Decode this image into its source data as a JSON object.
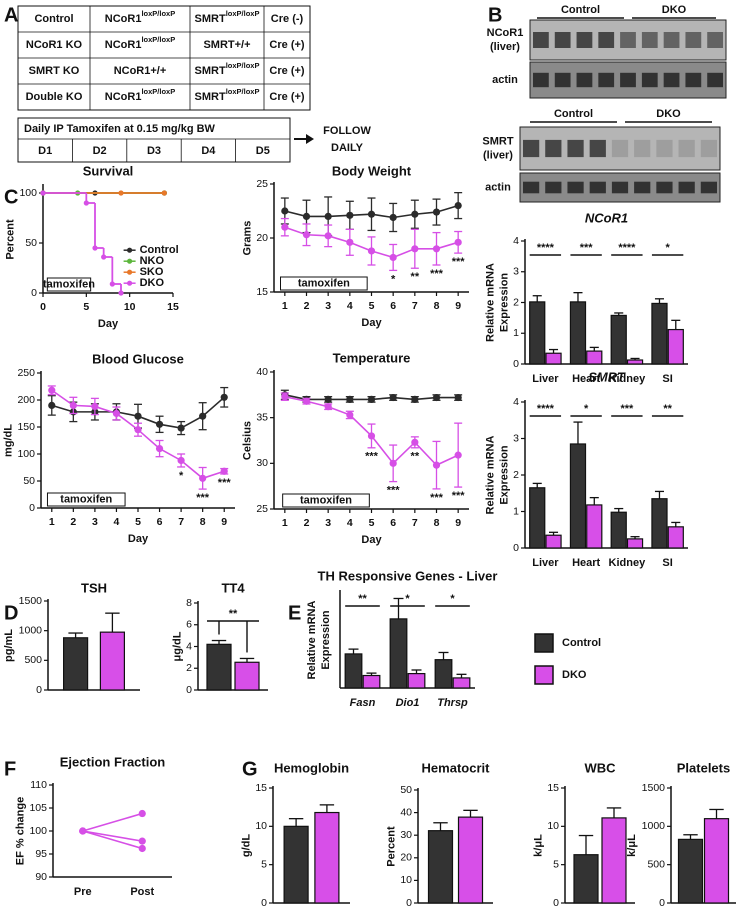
{
  "panel_labels": [
    "A",
    "B",
    "C",
    "D",
    "E",
    "F",
    "G"
  ],
  "genotype_table": {
    "rows": [
      [
        "Control",
        {
          "base": "NCoR1",
          "sup": "loxP/loxP"
        },
        {
          "base": "SMRT",
          "sup": "loxP/loxP"
        },
        "Cre (-)"
      ],
      [
        "NCoR1 KO",
        {
          "base": "NCoR1",
          "sup": "loxP/loxP"
        },
        "SMRT+/+",
        "Cre (+)"
      ],
      [
        "SMRT KO",
        "NCoR1+/+",
        {
          "base": "SMRT",
          "sup": "loxP/loxP"
        },
        "Cre (+)"
      ],
      [
        "Double KO",
        {
          "base": "NCoR1",
          "sup": "loxP/loxP"
        },
        {
          "base": "SMRT",
          "sup": "loxP/loxP"
        },
        "Cre (+)"
      ]
    ]
  },
  "tamoxifen_schedule": {
    "title": "Daily IP Tamoxifen at 0.15 mg/kg BW",
    "days": [
      "D1",
      "D2",
      "D3",
      "D4",
      "D5"
    ],
    "follow": [
      "FOLLOW",
      "DAILY"
    ]
  },
  "blots": [
    {
      "groups": [
        "Control",
        "DKO"
      ],
      "rows": [
        [
          "NCoR1",
          "(liver)"
        ],
        [
          "actin"
        ]
      ]
    },
    {
      "groups": [
        "Control",
        "DKO"
      ],
      "rows": [
        [
          "SMRT",
          "(liver)"
        ],
        [
          "actin"
        ]
      ]
    }
  ],
  "chart_data": [
    {
      "type": "step",
      "title": "Survival",
      "ylabel": "Percent",
      "xlabel": "Day",
      "xlim": [
        0,
        15
      ],
      "xticks": [
        0,
        5,
        10,
        15
      ],
      "ylim": [
        0,
        107
      ],
      "yticks": [
        0,
        50,
        100
      ],
      "legend": "right",
      "annotations": [
        {
          "text": "tamoxifen",
          "x0": 0.5,
          "x1": 5.5
        }
      ],
      "series": [
        {
          "name": "Control",
          "color": "#2b2b2b",
          "x": [
            0,
            6,
            14
          ],
          "values": [
            100,
            100,
            100
          ]
        },
        {
          "name": "NKO",
          "color": "#5cb63c",
          "x": [
            0,
            4,
            14
          ],
          "values": [
            100,
            100,
            100
          ]
        },
        {
          "name": "SKO",
          "color": "#e8782a",
          "x": [
            0,
            9,
            14
          ],
          "values": [
            100,
            100,
            100
          ]
        },
        {
          "name": "DKO",
          "color": "#d64fe6",
          "x": [
            0,
            5,
            6,
            7,
            8,
            9
          ],
          "values": [
            100,
            90,
            45,
            36,
            9,
            0
          ]
        }
      ]
    },
    {
      "type": "line",
      "title": "Body Weight",
      "ylabel": "Grams",
      "xlabel": "Day",
      "x": [
        1,
        2,
        3,
        4,
        5,
        6,
        7,
        8,
        9
      ],
      "xlim": [
        0.5,
        9.5
      ],
      "xticks": [
        1,
        2,
        3,
        4,
        5,
        6,
        7,
        8,
        9
      ],
      "ylim": [
        15,
        25
      ],
      "yticks": [
        15,
        20,
        25
      ],
      "annotations": [
        {
          "text": "tamoxifen",
          "x0": 0.8,
          "x1": 4.8
        }
      ],
      "series": [
        {
          "color": "#2b2b2b",
          "values": [
            22.5,
            22.0,
            22.0,
            22.1,
            22.2,
            21.9,
            22.2,
            22.4,
            23.0
          ],
          "errors": [
            1.2,
            1.5,
            1.8,
            1.3,
            1.5,
            1.3,
            1.3,
            1.2,
            1.2
          ]
        },
        {
          "color": "#d64fe6",
          "values": [
            21.0,
            20.3,
            20.2,
            19.6,
            18.8,
            18.2,
            19.0,
            19.0,
            19.6
          ],
          "errors": [
            0.8,
            1.0,
            1.0,
            1.2,
            1.3,
            1.2,
            1.8,
            1.5,
            1.0
          ]
        }
      ],
      "significance": [
        null,
        null,
        null,
        null,
        null,
        "*",
        "**",
        "***",
        "***"
      ]
    },
    {
      "type": "line",
      "title": "Blood Glucose",
      "ylabel": "mg/dL",
      "xlabel": "Day",
      "x": [
        1,
        2,
        3,
        4,
        5,
        6,
        7,
        8,
        9
      ],
      "xlim": [
        0.5,
        9.5
      ],
      "xticks": [
        1,
        2,
        3,
        4,
        5,
        6,
        7,
        8,
        9
      ],
      "ylim": [
        0,
        250
      ],
      "yticks": [
        0,
        50,
        100,
        150,
        200,
        250
      ],
      "annotations": [
        {
          "text": "tamoxifen",
          "x0": 0.8,
          "x1": 4.4
        }
      ],
      "series": [
        {
          "color": "#2b2b2b",
          "values": [
            190,
            178,
            178,
            178,
            170,
            155,
            148,
            170,
            205
          ],
          "errors": [
            18,
            18,
            15,
            15,
            22,
            15,
            12,
            25,
            18
          ]
        },
        {
          "color": "#d64fe6",
          "values": [
            218,
            190,
            188,
            175,
            145,
            110,
            88,
            55,
            68
          ],
          "errors": [
            8,
            15,
            15,
            12,
            12,
            15,
            12,
            20,
            5
          ]
        }
      ],
      "significance": [
        null,
        null,
        null,
        null,
        null,
        null,
        "*",
        "***",
        "***"
      ]
    },
    {
      "type": "line",
      "title": "Temperature",
      "ylabel": "Celsius",
      "xlabel": "Day",
      "x": [
        1,
        2,
        3,
        4,
        5,
        6,
        7,
        8,
        9
      ],
      "xlim": [
        0.5,
        9.5
      ],
      "xticks": [
        1,
        2,
        3,
        4,
        5,
        6,
        7,
        8,
        9
      ],
      "ylim": [
        25,
        40
      ],
      "yticks": [
        25,
        30,
        35,
        40
      ],
      "annotations": [
        {
          "text": "tamoxifen",
          "x0": 0.9,
          "x1": 4.9
        }
      ],
      "series": [
        {
          "color": "#2b2b2b",
          "values": [
            37.5,
            37.0,
            37.0,
            37.0,
            37.0,
            37.2,
            37.0,
            37.2,
            37.2
          ],
          "errors": [
            0.5,
            0.3,
            0.3,
            0.3,
            0.3,
            0.3,
            0.3,
            0.3,
            0.3
          ]
        },
        {
          "color": "#d64fe6",
          "values": [
            37.3,
            36.8,
            36.2,
            35.3,
            33.0,
            30.0,
            32.3,
            29.8,
            30.9
          ],
          "errors": [
            0.4,
            0.3,
            0.3,
            0.4,
            1.3,
            2.0,
            0.6,
            2.6,
            3.5
          ]
        }
      ],
      "significance": [
        null,
        null,
        null,
        null,
        "***",
        "***",
        "**",
        "***",
        "***"
      ]
    },
    {
      "type": "bar",
      "title": "NCoR1",
      "italic_title": true,
      "ylabel": [
        "Relative mRNA",
        "Expression"
      ],
      "categories": [
        "Liver",
        "Heart",
        "Kidney",
        "SI"
      ],
      "ylim": [
        0,
        4
      ],
      "yticks": [
        0,
        1,
        2,
        3,
        4
      ],
      "series": [
        {
          "color": "#333333",
          "values": [
            2.02,
            2.02,
            1.58,
            1.97
          ],
          "errors": [
            0.2,
            0.3,
            0.08,
            0.15
          ]
        },
        {
          "color": "#d74fe8",
          "values": [
            0.35,
            0.42,
            0.13,
            1.12
          ],
          "errors": [
            0.12,
            0.12,
            0.05,
            0.3
          ]
        }
      ],
      "significance": [
        "****",
        "***",
        "****",
        "*"
      ]
    },
    {
      "type": "bar",
      "title": "SMRT",
      "italic_title": true,
      "ylabel": [
        "Relative mRNA",
        "Expression"
      ],
      "categories": [
        "Liver",
        "Heart",
        "Kidney",
        "SI"
      ],
      "ylim": [
        0,
        4
      ],
      "yticks": [
        0,
        1,
        2,
        3,
        4
      ],
      "series": [
        {
          "color": "#333333",
          "values": [
            1.65,
            2.85,
            0.98,
            1.35
          ],
          "errors": [
            0.12,
            0.6,
            0.1,
            0.2
          ]
        },
        {
          "color": "#d74fe8",
          "values": [
            0.35,
            1.18,
            0.25,
            0.58
          ],
          "errors": [
            0.08,
            0.2,
            0.06,
            0.12
          ]
        }
      ],
      "significance": [
        "****",
        "*",
        "***",
        "**"
      ]
    },
    {
      "type": "bar",
      "title": "TSH",
      "ylabel": "pg/mL",
      "categories": [
        null
      ],
      "ylim": [
        0,
        1500
      ],
      "yticks": [
        0,
        500,
        1000,
        1500
      ],
      "series": [
        {
          "color": "#333333",
          "values": [
            880
          ],
          "errors": [
            80
          ]
        },
        {
          "color": "#d74fe8",
          "values": [
            975
          ],
          "errors": [
            320
          ]
        }
      ]
    },
    {
      "type": "bar",
      "title": "TT4",
      "ylabel": "μg/dL",
      "categories": [
        null
      ],
      "ylim": [
        0,
        8
      ],
      "yticks": [
        0,
        2,
        4,
        6,
        8
      ],
      "series": [
        {
          "color": "#333333",
          "values": [
            4.2
          ],
          "errors": [
            0.35
          ]
        },
        {
          "color": "#d74fe8",
          "values": [
            2.55
          ],
          "errors": [
            0.35
          ]
        }
      ],
      "significance": [
        "**"
      ]
    },
    {
      "type": "bar",
      "title": "TH Responsive Genes - Liver",
      "ylabel": [
        "Relative mRNA",
        "Expression"
      ],
      "italic_categories": true,
      "categories": [
        "Fasn",
        "Dio1",
        "Thrsp"
      ],
      "ylim": [
        0,
        4
      ],
      "legend": "outside right",
      "series": [
        {
          "name": "Control",
          "color": "#333333",
          "values": [
            1.42,
            2.88,
            1.18
          ],
          "errors": [
            0.2,
            0.85,
            0.3
          ]
        },
        {
          "name": "DKO",
          "color": "#d74fe8",
          "values": [
            0.52,
            0.6,
            0.42
          ],
          "errors": [
            0.1,
            0.15,
            0.15
          ]
        }
      ],
      "significance": [
        "**",
        "*",
        "*"
      ]
    },
    {
      "type": "line",
      "title": "Ejection Fraction",
      "ylabel": "EF % change",
      "categories": [
        "Pre",
        "Post"
      ],
      "ylim": [
        90,
        110
      ],
      "yticks": [
        90,
        95,
        100,
        105,
        110
      ],
      "series": [
        {
          "color": "#d64fe6",
          "values": [
            100,
            103.8
          ]
        },
        {
          "color": "#d64fe6",
          "values": [
            100,
            97.8
          ]
        },
        {
          "color": "#d64fe6",
          "values": [
            100,
            96.2
          ]
        }
      ]
    },
    {
      "type": "bar",
      "title": "Hemoglobin",
      "ylabel": "g/dL",
      "categories": [
        null
      ],
      "ylim": [
        0,
        15
      ],
      "yticks": [
        0,
        5,
        10,
        15
      ],
      "series": [
        {
          "color": "#333333",
          "values": [
            10
          ],
          "errors": [
            1
          ]
        },
        {
          "color": "#d74fe8",
          "values": [
            11.8
          ],
          "errors": [
            1
          ]
        }
      ]
    },
    {
      "type": "bar",
      "title": "Hematocrit",
      "ylabel": "Percent",
      "categories": [
        null
      ],
      "ylim": [
        0,
        50
      ],
      "yticks": [
        0,
        10,
        20,
        30,
        40,
        50
      ],
      "series": [
        {
          "color": "#333333",
          "values": [
            32
          ],
          "errors": [
            3.5
          ]
        },
        {
          "color": "#d74fe8",
          "values": [
            38
          ],
          "errors": [
            3
          ]
        }
      ]
    },
    {
      "type": "bar",
      "title": "WBC",
      "ylabel": "k/μL",
      "categories": [
        null
      ],
      "ylim": [
        0,
        15
      ],
      "yticks": [
        0,
        5,
        10,
        15
      ],
      "series": [
        {
          "color": "#333333",
          "values": [
            6.3
          ],
          "errors": [
            2.5
          ]
        },
        {
          "color": "#d74fe8",
          "values": [
            11.1
          ],
          "errors": [
            1.3
          ]
        }
      ]
    },
    {
      "type": "bar",
      "title": "Platelets",
      "ylabel": "k/μL",
      "categories": [
        null
      ],
      "ylim": [
        0,
        1500
      ],
      "yticks": [
        0,
        500,
        1000,
        1500
      ],
      "series": [
        {
          "color": "#333333",
          "values": [
            830
          ],
          "errors": [
            60
          ]
        },
        {
          "color": "#d74fe8",
          "values": [
            1100
          ],
          "errors": [
            120
          ]
        }
      ]
    }
  ]
}
